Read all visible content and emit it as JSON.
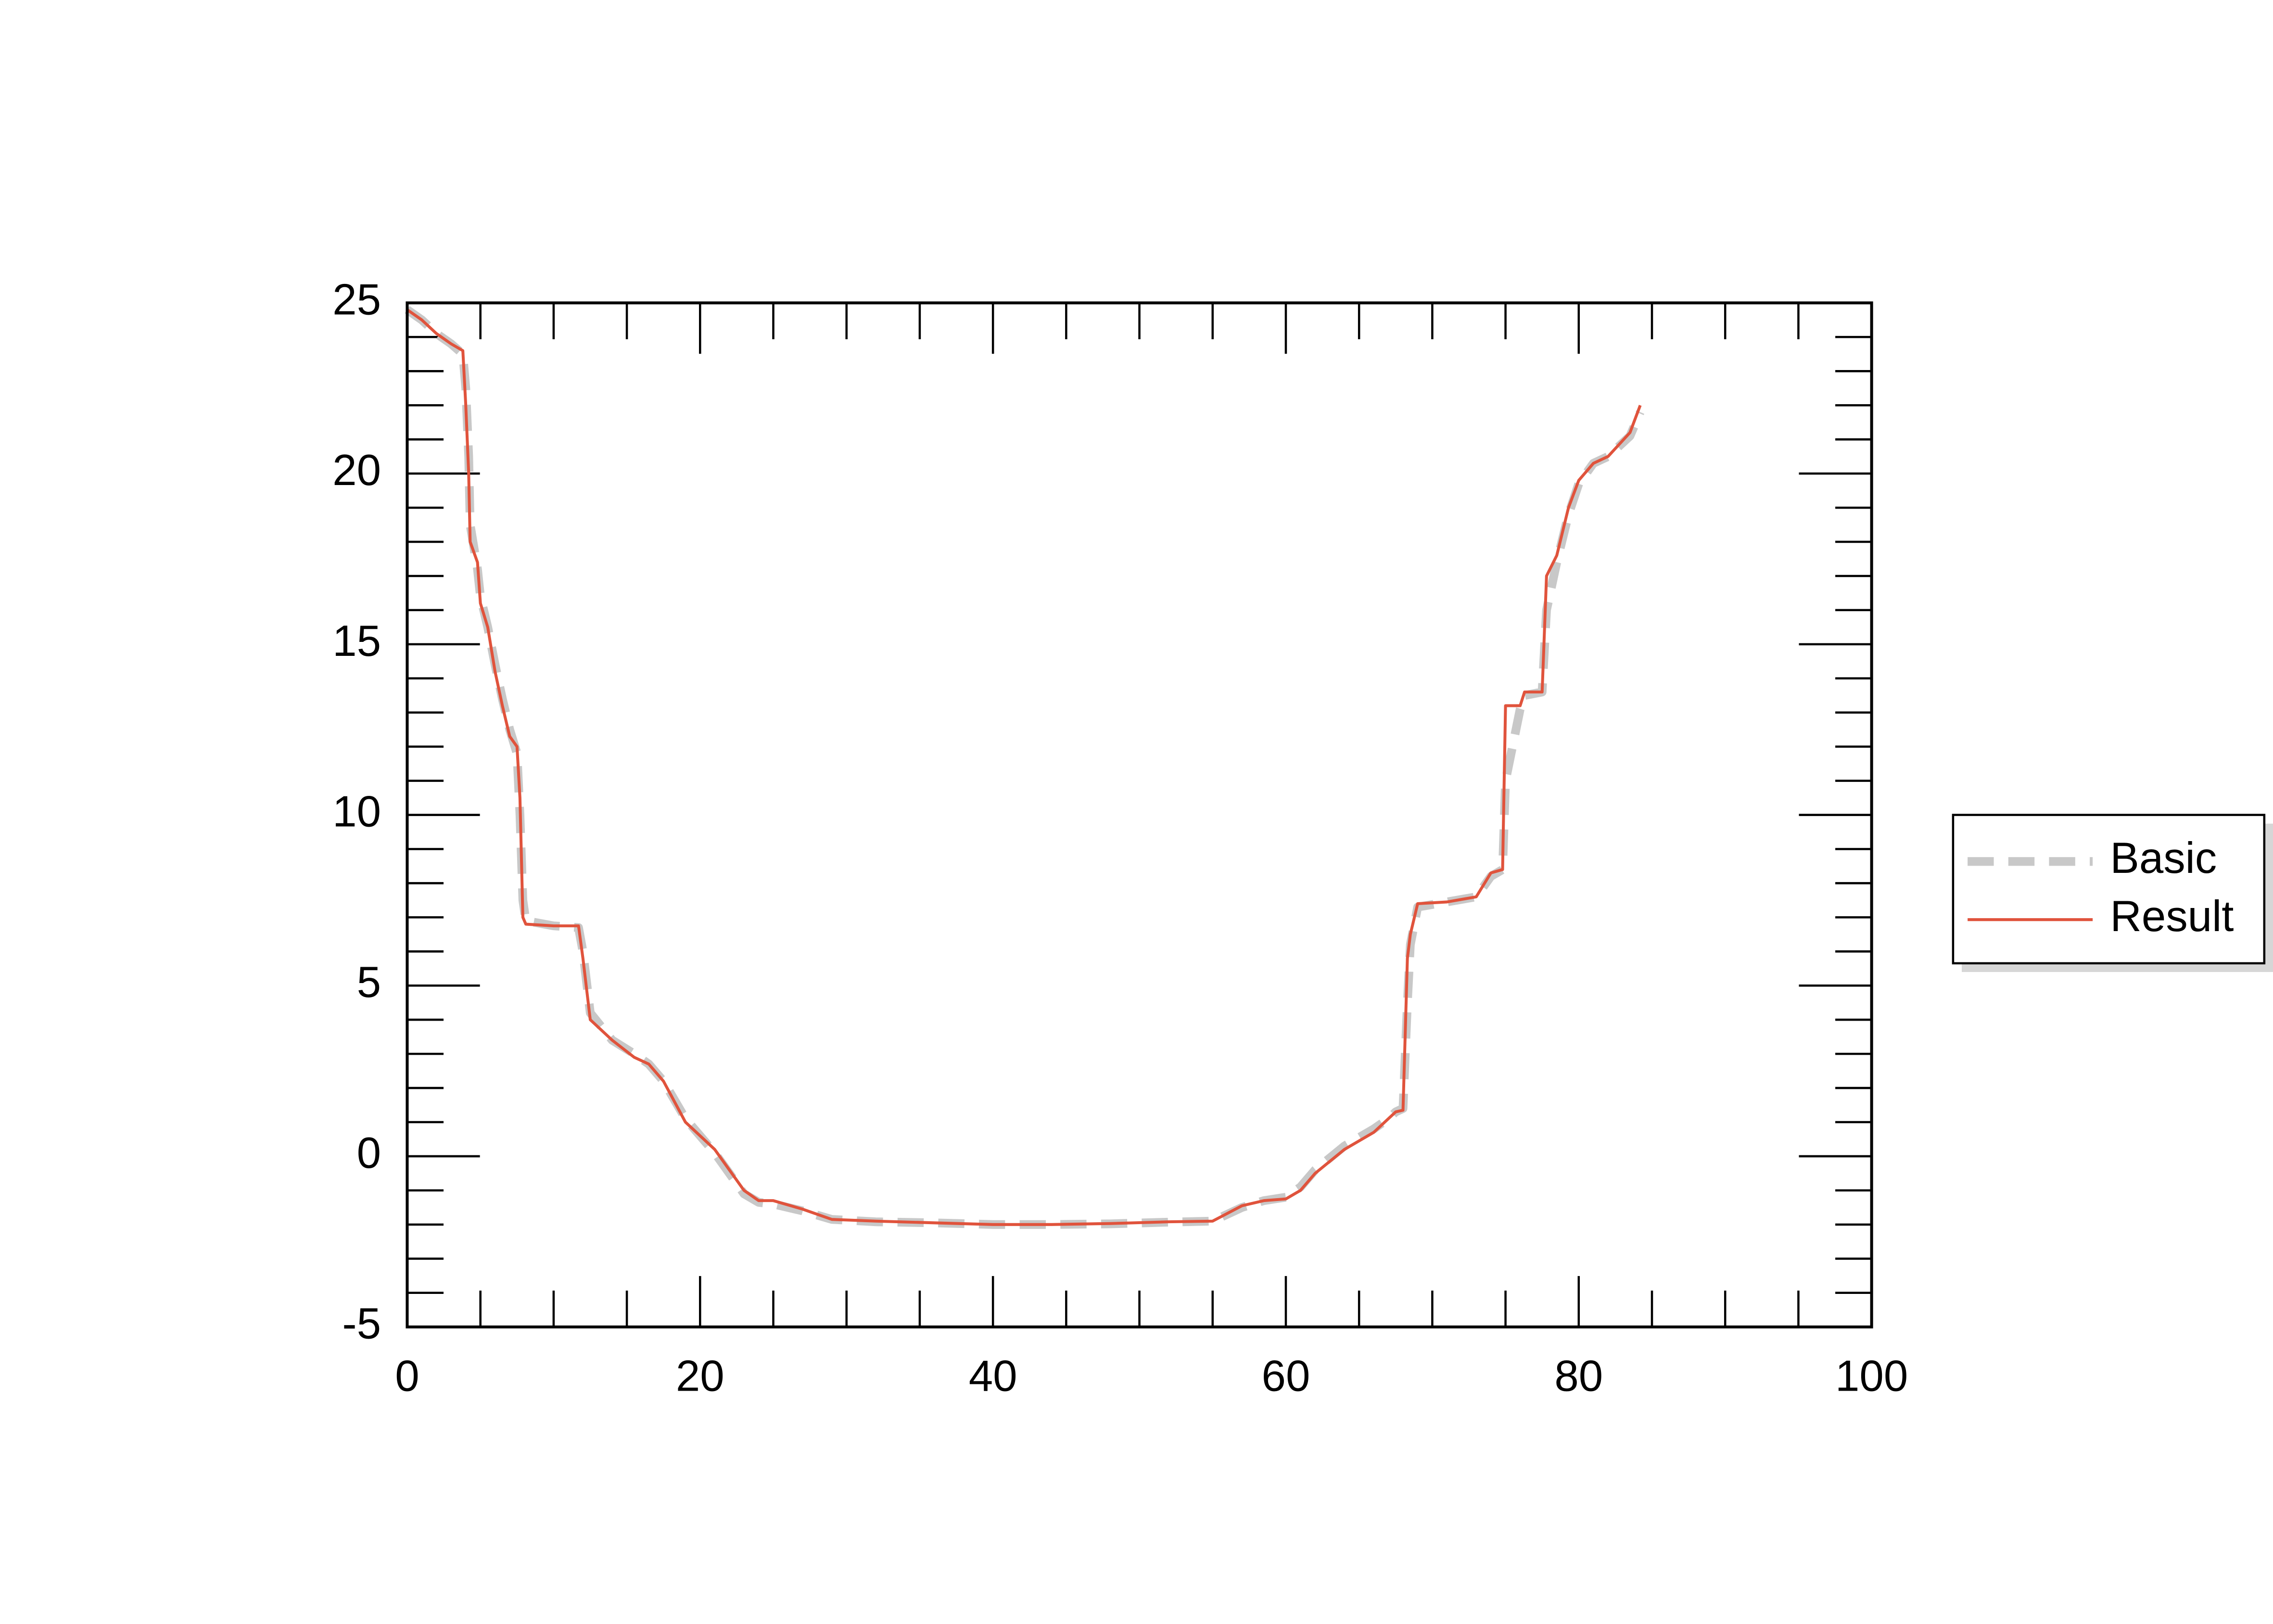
{
  "chart_data": {
    "type": "line",
    "x": [
      0,
      1,
      2,
      3,
      3.8,
      4.0,
      4.2,
      4.3,
      4.8,
      5.0,
      5.5,
      6.0,
      6.5,
      7.0,
      7.5,
      7.7,
      7.9,
      8.1,
      10,
      11.7,
      12.0,
      12.5,
      14,
      15.5,
      16.5,
      17.5,
      19,
      20,
      21,
      22,
      23,
      24,
      25,
      27,
      29,
      32,
      36,
      40,
      44,
      48,
      52,
      55,
      57,
      58.5,
      60,
      61,
      62,
      64,
      66,
      67,
      67.5,
      68,
      68.3,
      68.5,
      69,
      71,
      73,
      74,
      74.8,
      75,
      76,
      76.3,
      77.5,
      77.8,
      78.5,
      79.3,
      80,
      81,
      82,
      83.5,
      84.2
    ],
    "series": [
      {
        "name": "Basic",
        "color": "#c8c8c8",
        "dash": true,
        "values": [
          24.8,
          24.5,
          24.1,
          23.8,
          23.5,
          22.5,
          20.5,
          18.5,
          17.2,
          16.4,
          15.5,
          14.4,
          13.4,
          12.5,
          11.8,
          10.0,
          7.5,
          6.9,
          6.75,
          6.7,
          6.0,
          4.2,
          3.4,
          3.0,
          2.7,
          2.2,
          1.1,
          0.6,
          0.1,
          -0.5,
          -1.1,
          -1.35,
          -1.4,
          -1.6,
          -1.85,
          -1.92,
          -1.95,
          -2.0,
          -2.0,
          -1.98,
          -1.93,
          -1.9,
          -1.5,
          -1.3,
          -1.2,
          -0.9,
          -0.4,
          0.3,
          0.8,
          1.1,
          1.3,
          1.4,
          4.5,
          6.2,
          7.3,
          7.45,
          7.6,
          8.2,
          8.4,
          11.0,
          13.1,
          13.5,
          13.6,
          16.0,
          17.4,
          18.8,
          19.7,
          20.3,
          20.5,
          21.1,
          21.8
        ]
      },
      {
        "name": "Result",
        "color": "#e0533c",
        "dash": false,
        "values": [
          24.8,
          24.5,
          24.1,
          23.8,
          23.6,
          22.0,
          20.0,
          18.0,
          17.4,
          16.2,
          15.5,
          14.2,
          13.2,
          12.3,
          12.0,
          10.5,
          7.0,
          6.8,
          6.75,
          6.75,
          5.8,
          4.0,
          3.4,
          2.9,
          2.7,
          2.2,
          1.0,
          0.6,
          0.2,
          -0.4,
          -1.0,
          -1.3,
          -1.3,
          -1.55,
          -1.85,
          -1.9,
          -1.95,
          -2.0,
          -2.0,
          -1.97,
          -1.92,
          -1.9,
          -1.45,
          -1.3,
          -1.25,
          -1.0,
          -0.5,
          0.2,
          0.7,
          1.1,
          1.3,
          1.35,
          5.8,
          6.5,
          7.4,
          7.45,
          7.6,
          8.3,
          8.4,
          13.2,
          13.2,
          13.6,
          13.6,
          17.0,
          17.6,
          19.0,
          19.8,
          20.3,
          20.5,
          21.2,
          22.0
        ]
      }
    ],
    "xlim": [
      0,
      100
    ],
    "xticks": [
      0,
      20,
      40,
      60,
      80,
      100
    ],
    "ylim": [
      -5,
      25
    ],
    "yticks": [
      -5,
      0,
      5,
      10,
      15,
      20,
      25
    ],
    "grid": false,
    "legend": "right"
  }
}
